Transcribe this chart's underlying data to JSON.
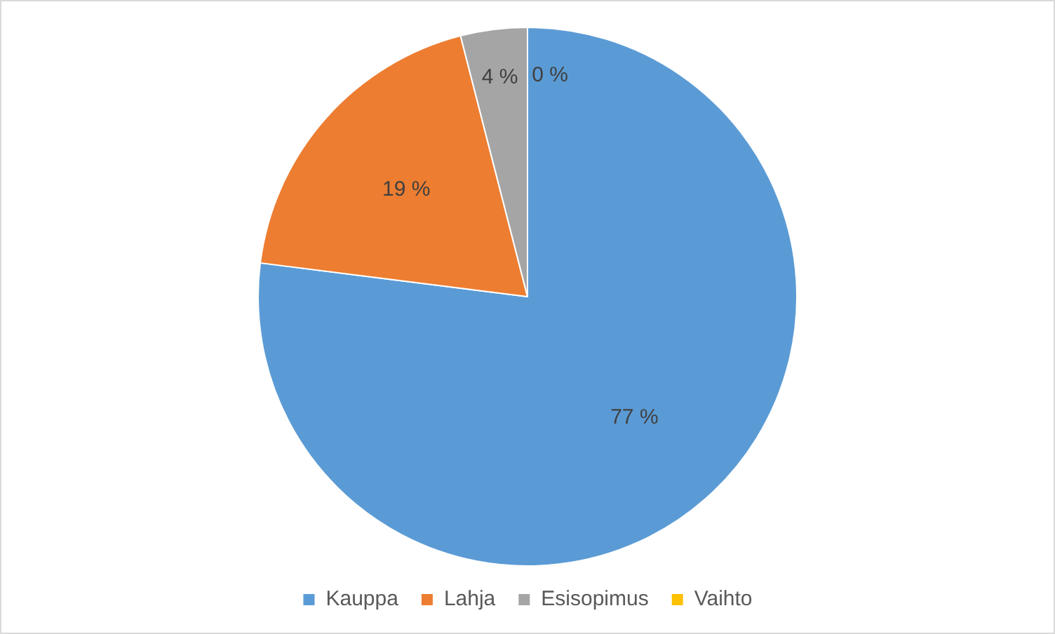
{
  "chart_data": {
    "type": "pie",
    "categories": [
      "Kauppa",
      "Lahja",
      "Esisopimus",
      "Vaihto"
    ],
    "values": [
      77,
      19,
      4,
      0
    ],
    "colors": [
      "#5b9bd5",
      "#ed7d31",
      "#a5a5a5",
      "#ffc000"
    ],
    "value_labels": [
      "77 %",
      "19 %",
      "4 %",
      "0 %"
    ],
    "legend": "bottom"
  }
}
